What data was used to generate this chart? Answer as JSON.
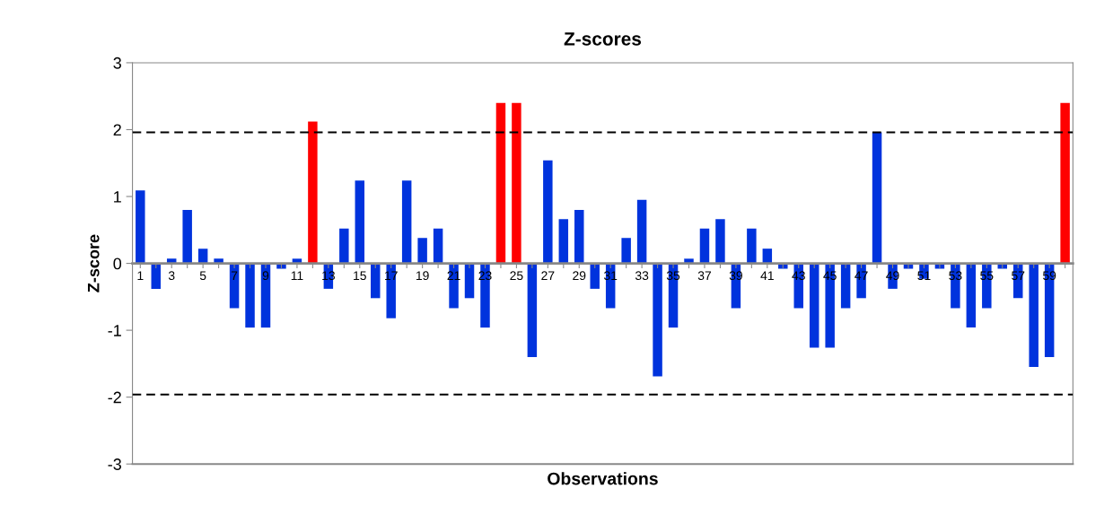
{
  "chart_data": {
    "type": "bar",
    "title": "Z-scores",
    "xlabel": "Observations",
    "ylabel": "Z-score",
    "categories": [
      "1",
      null,
      "3",
      null,
      "5",
      null,
      "7",
      null,
      "9",
      null,
      "11",
      null,
      "13",
      null,
      "15",
      null,
      "17",
      null,
      "19",
      null,
      "21",
      null,
      "23",
      null,
      "25",
      null,
      "27",
      null,
      "29",
      null,
      "31",
      null,
      "33",
      null,
      "35",
      null,
      "37",
      null,
      "39",
      null,
      "41",
      null,
      "43",
      null,
      "45",
      null,
      "47",
      null,
      "49",
      null,
      "51",
      null,
      "53",
      null,
      "55",
      null,
      "57",
      null,
      "59",
      null
    ],
    "values": [
      1.09,
      -0.38,
      0.07,
      0.8,
      0.22,
      0.07,
      -0.67,
      -0.96,
      -0.96,
      -0.08,
      0.07,
      2.12,
      -0.38,
      0.52,
      1.24,
      -0.52,
      -0.82,
      1.24,
      0.38,
      0.52,
      -0.67,
      -0.52,
      -0.96,
      2.4,
      2.4,
      -1.4,
      1.54,
      0.66,
      0.8,
      -0.38,
      -0.67,
      0.38,
      0.95,
      -1.69,
      -0.96,
      0.07,
      0.52,
      0.66,
      -0.67,
      0.52,
      0.22,
      -0.08,
      -0.67,
      -1.26,
      -1.26,
      -0.67,
      -0.52,
      1.96,
      -0.38,
      -0.08,
      -0.23,
      -0.08,
      -0.67,
      -0.96,
      -0.67,
      -0.08,
      -0.52,
      -1.55,
      -1.4,
      2.4
    ],
    "colors": [
      "#0033dd",
      "#0033dd",
      "#0033dd",
      "#0033dd",
      "#0033dd",
      "#0033dd",
      "#0033dd",
      "#0033dd",
      "#0033dd",
      "#0033dd",
      "#0033dd",
      "#ff0000",
      "#0033dd",
      "#0033dd",
      "#0033dd",
      "#0033dd",
      "#0033dd",
      "#0033dd",
      "#0033dd",
      "#0033dd",
      "#0033dd",
      "#0033dd",
      "#0033dd",
      "#ff0000",
      "#ff0000",
      "#0033dd",
      "#0033dd",
      "#0033dd",
      "#0033dd",
      "#0033dd",
      "#0033dd",
      "#0033dd",
      "#0033dd",
      "#0033dd",
      "#0033dd",
      "#0033dd",
      "#0033dd",
      "#0033dd",
      "#0033dd",
      "#0033dd",
      "#0033dd",
      "#0033dd",
      "#0033dd",
      "#0033dd",
      "#0033dd",
      "#0033dd",
      "#0033dd",
      "#0033dd",
      "#0033dd",
      "#0033dd",
      "#0033dd",
      "#0033dd",
      "#0033dd",
      "#0033dd",
      "#0033dd",
      "#0033dd",
      "#0033dd",
      "#0033dd",
      "#0033dd",
      "#ff0000"
    ],
    "ylim": [
      -3,
      3
    ],
    "yticks": [
      -3,
      -2,
      -1,
      0,
      1,
      2,
      3
    ],
    "grid": false,
    "legend": false,
    "ref_lines": [
      {
        "axis": "y",
        "value": 1.96,
        "label": null,
        "color": "#000000",
        "line_style": "dashed"
      },
      {
        "axis": "y",
        "value": -1.96,
        "label": null,
        "color": "#000000",
        "line_style": "dashed"
      }
    ]
  }
}
